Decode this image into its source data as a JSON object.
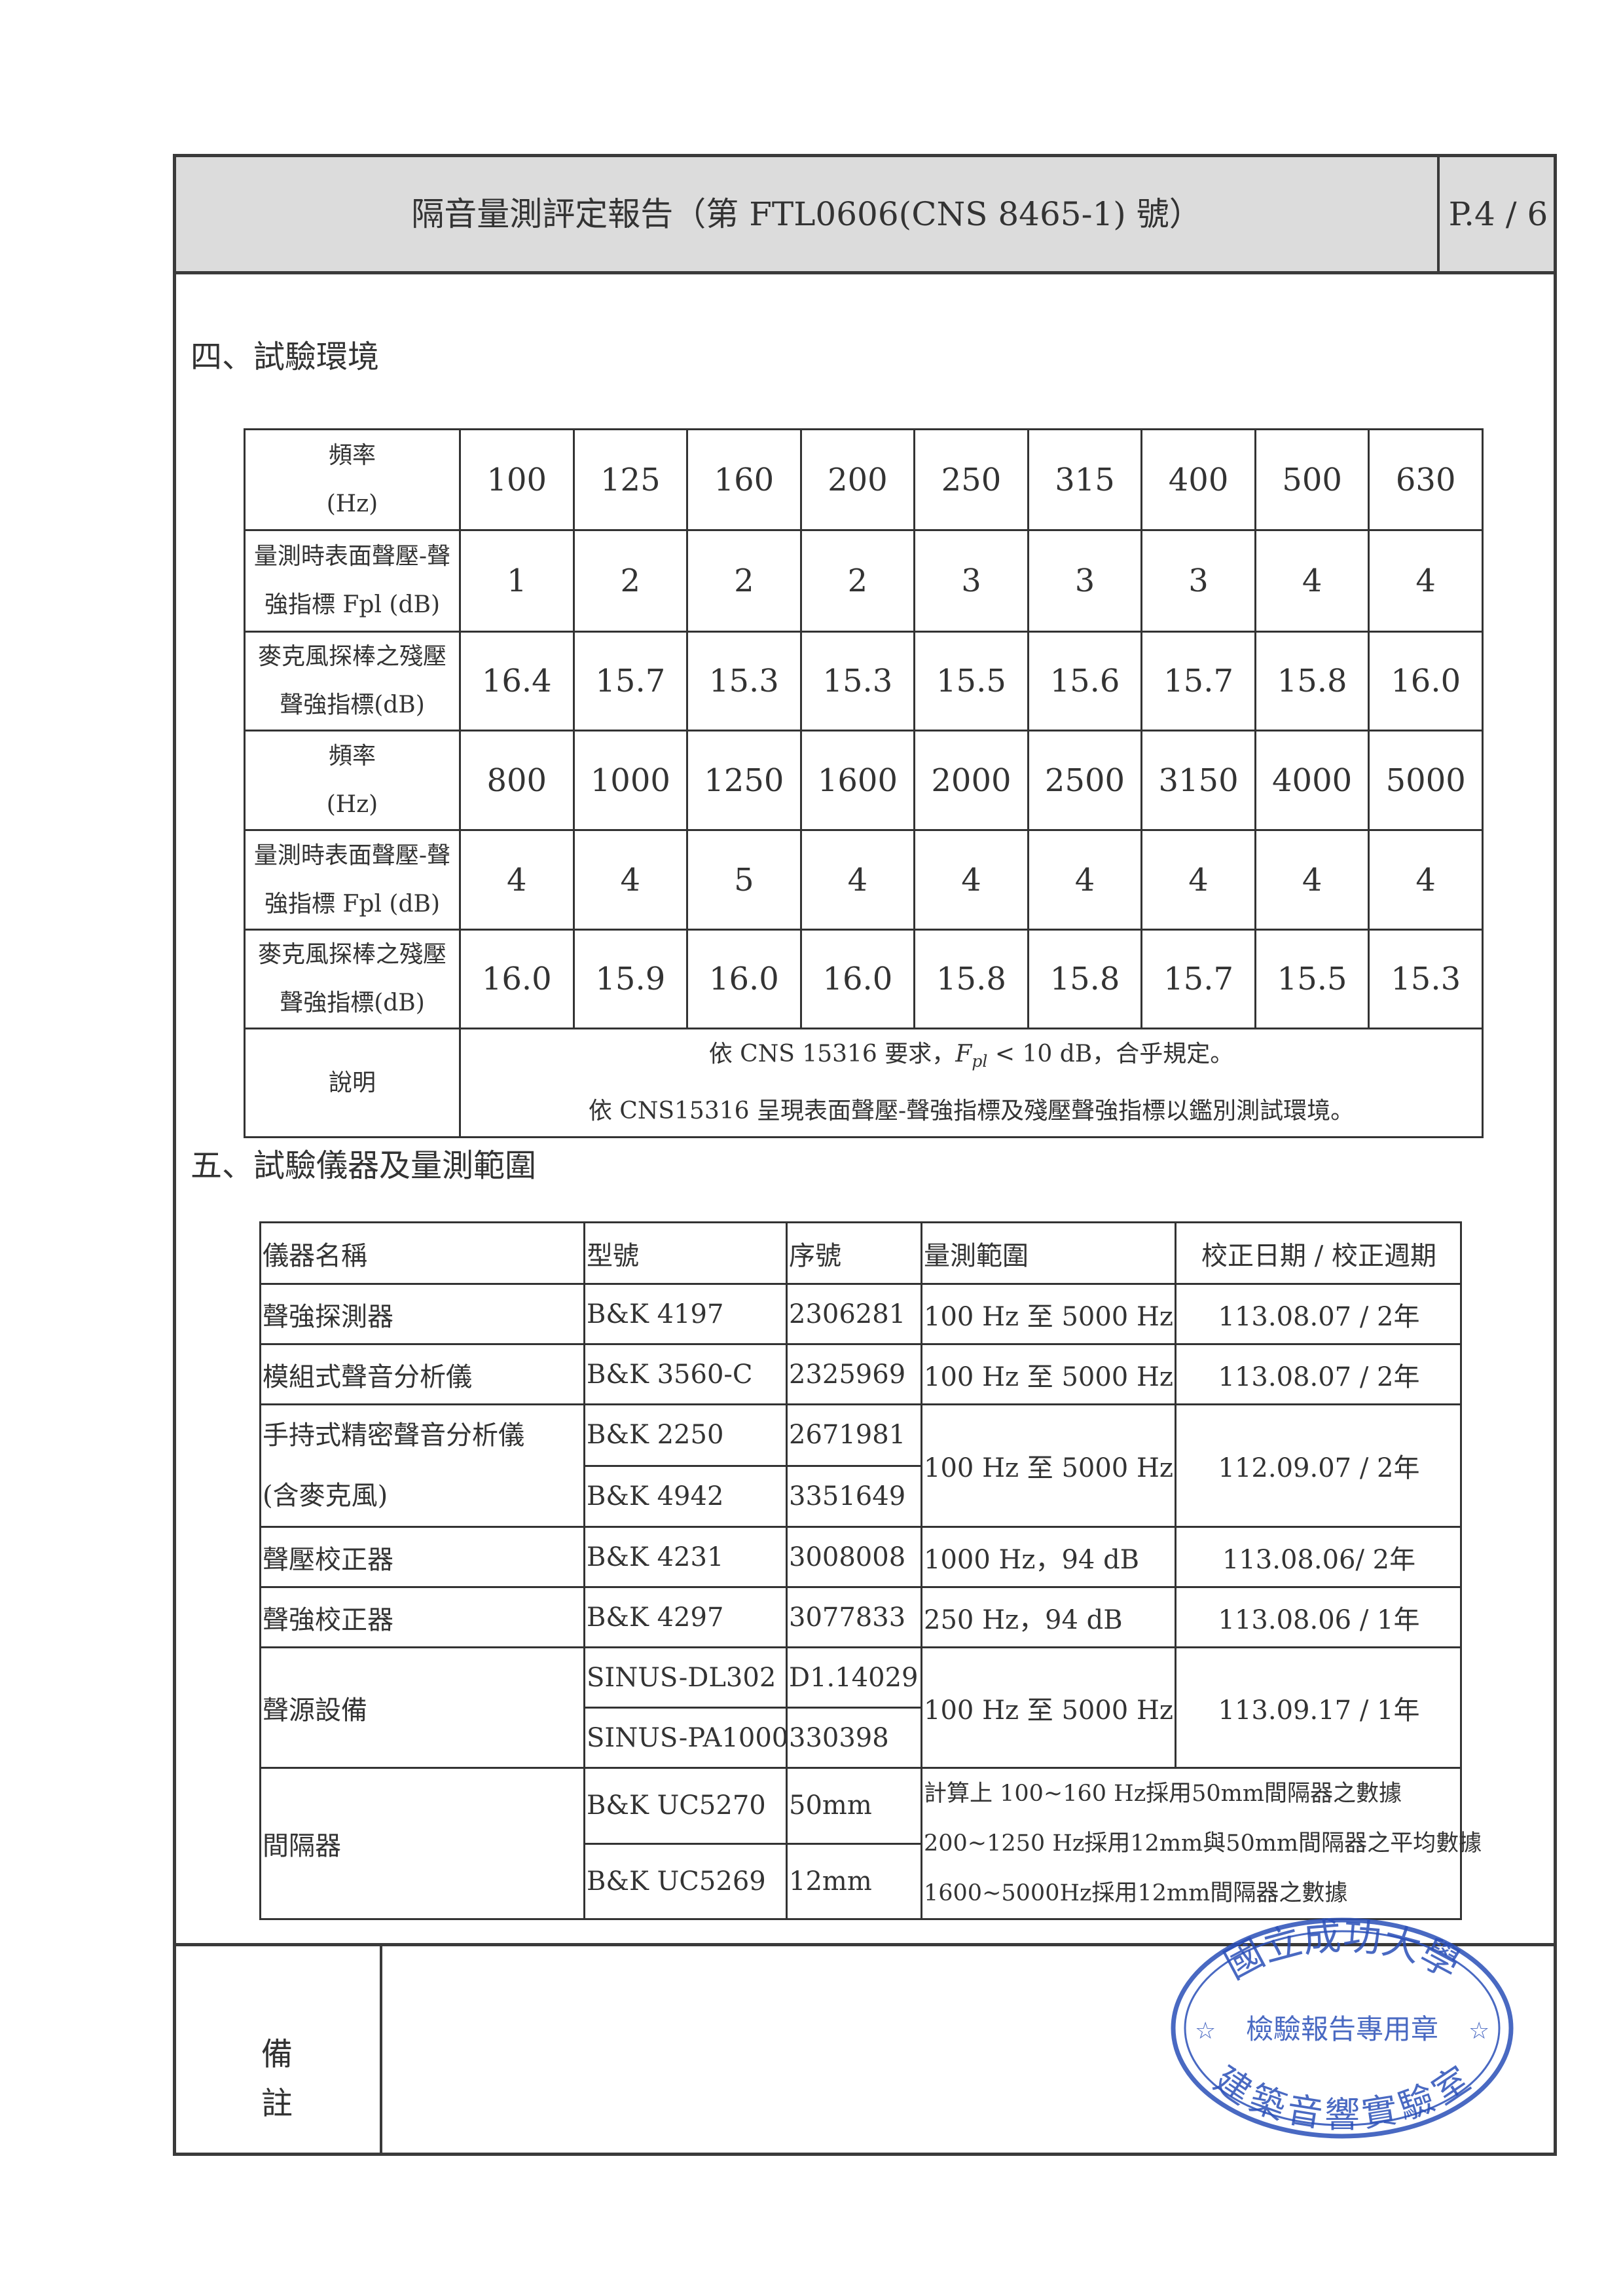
{
  "header": {
    "title": "隔音量測評定報告（第 FTL0606(CNS 8465-1) 號）",
    "page": "P.4 / 6"
  },
  "section4": {
    "heading": "四、試驗環境",
    "rows": [
      {
        "label": [
          "頻率",
          "(Hz)"
        ],
        "values": [
          "100",
          "125",
          "160",
          "200",
          "250",
          "315",
          "400",
          "500",
          "630"
        ]
      },
      {
        "label": [
          "量測時表面聲壓-聲",
          "強指標 Fpl (dB)"
        ],
        "values": [
          "1",
          "2",
          "2",
          "2",
          "3",
          "3",
          "3",
          "4",
          "4"
        ]
      },
      {
        "label": [
          "麥克風探棒之殘壓",
          "聲強指標(dB)"
        ],
        "values": [
          "16.4",
          "15.7",
          "15.3",
          "15.3",
          "15.5",
          "15.6",
          "15.7",
          "15.8",
          "16.0"
        ]
      },
      {
        "label": [
          "頻率",
          "(Hz)"
        ],
        "values": [
          "800",
          "1000",
          "1250",
          "1600",
          "2000",
          "2500",
          "3150",
          "4000",
          "5000"
        ]
      },
      {
        "label": [
          "量測時表面聲壓-聲",
          "強指標 Fpl (dB)"
        ],
        "values": [
          "4",
          "4",
          "5",
          "4",
          "4",
          "4",
          "4",
          "4",
          "4"
        ]
      },
      {
        "label": [
          "麥克風探棒之殘壓",
          "聲強指標(dB)"
        ],
        "values": [
          "16.0",
          "15.9",
          "16.0",
          "16.0",
          "15.8",
          "15.8",
          "15.7",
          "15.5",
          "15.3"
        ]
      }
    ],
    "note_label": "說明",
    "note_lines": [
      "依 CNS 15316 要求，Fpl < 10 dB，合乎規定。",
      "依 CNS15316 呈現表面聲壓-聲強指標及殘壓聲強指標以鑑別測試環境。"
    ]
  },
  "section5": {
    "heading": "五、試驗儀器及量測範圍",
    "columns": [
      "儀器名稱",
      "型號",
      "序號",
      "量測範圍",
      "校正日期 / 校正週期"
    ],
    "rows": [
      {
        "name": "聲強探測器",
        "model": "B&K 4197",
        "serial": "2306281",
        "range": "100 Hz  至  5000 Hz",
        "cal": "113.08.07 / 2年"
      },
      {
        "name": "模組式聲音分析儀",
        "model": "B&K 3560-C",
        "serial": "2325969",
        "range": "100 Hz  至  5000 Hz",
        "cal": "113.08.07 / 2年"
      },
      {
        "name": [
          "手持式精密聲音分析儀",
          "(含麥克風)"
        ],
        "models": [
          "B&K 2250",
          "B&K 4942"
        ],
        "serials": [
          "2671981",
          "3351649"
        ],
        "range": "100 Hz  至  5000 Hz",
        "cal": "112.09.07 / 2年"
      },
      {
        "name": "聲壓校正器",
        "model": "B&K 4231",
        "serial": "3008008",
        "range": "1000 Hz，94 dB",
        "cal": "113.08.06/ 2年"
      },
      {
        "name": "聲強校正器",
        "model": "B&K 4297",
        "serial": "3077833",
        "range": "250 Hz，94 dB",
        "cal": "113.08.06 / 1年"
      },
      {
        "name": "聲源設備",
        "models": [
          "SINUS-DL302",
          "SINUS-PA1000"
        ],
        "serials": [
          "D1.14029",
          "330398"
        ],
        "range": "100 Hz  至  5000 Hz",
        "cal": "113.09.17 / 1年"
      },
      {
        "name": "間隔器",
        "models": [
          "B&K UC5270",
          "B&K UC5269"
        ],
        "serials": [
          "50mm",
          "12mm"
        ],
        "notes": [
          "計算上  100~160 Hz採用50mm間隔器之數據",
          "200~1250 Hz採用12mm與50mm間隔器之平均數據",
          "1600~5000Hz採用12mm間隔器之數據"
        ]
      }
    ]
  },
  "remarks": {
    "label_1": "備",
    "label_2": "註"
  },
  "stamp": {
    "top": "國立成功大學",
    "middle": "檢驗報告專用章",
    "bottom": "建築音響實驗室",
    "color": "#2a4fb8"
  }
}
